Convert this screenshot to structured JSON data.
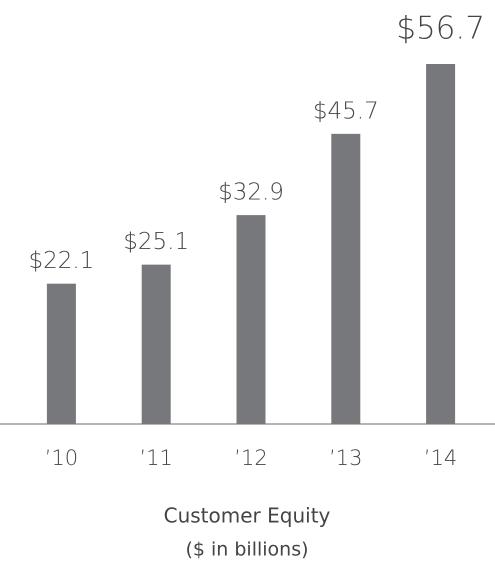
{
  "chart_data": {
    "type": "bar",
    "title": "Customer Equity",
    "subtitle": "($ in billions)",
    "categories": [
      "’10",
      "’11",
      "’12",
      "’13",
      "’14"
    ],
    "values": [
      22.1,
      25.1,
      32.9,
      45.7,
      56.7
    ],
    "value_labels": [
      "$22.1",
      "$25.1",
      "$32.9",
      "$45.7",
      "$56.7"
    ],
    "value_label_colors": [
      "#555555",
      "#555555",
      "#555555",
      "#555555",
      "#c8202f"
    ],
    "color": "#77787b"
  }
}
